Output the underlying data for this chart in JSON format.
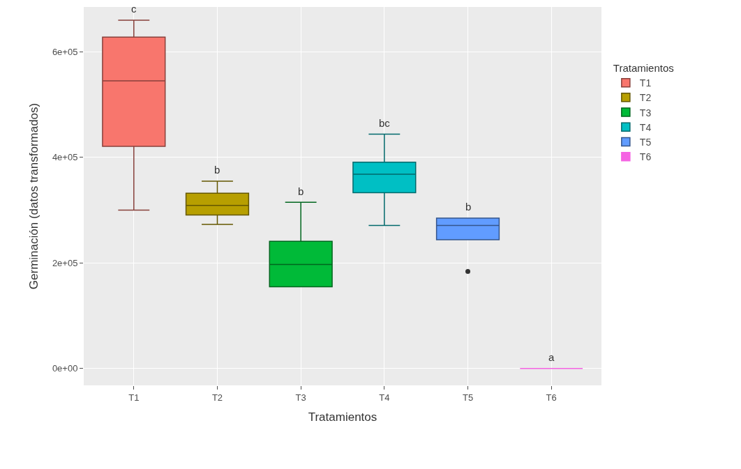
{
  "chart_data": {
    "type": "box",
    "xlabel": "Tratamientos",
    "ylabel": "Germinación (datos transformados)",
    "legend_title": "Tratamientos",
    "categories": [
      "T1",
      "T2",
      "T3",
      "T4",
      "T5",
      "T6"
    ],
    "series": [
      {
        "name": "T1",
        "color": "#F8766D",
        "boxes": [
          {
            "low": 300000,
            "q1": 421000,
            "median": 545000,
            "q3": 628000,
            "high": 660000
          },
          null,
          null,
          null,
          null,
          null
        ]
      },
      {
        "name": "T2",
        "color": "#B79F00",
        "boxes": [
          null,
          {
            "low": 273000,
            "q1": 291000,
            "median": 309000,
            "q3": 332000,
            "high": 355000
          },
          null,
          null,
          null,
          null
        ]
      },
      {
        "name": "T3",
        "color": "#00BA38",
        "boxes": [
          null,
          null,
          {
            "low": 155000,
            "q1": 155000,
            "median": 197000,
            "q3": 241000,
            "high": 315000
          },
          null,
          null,
          null
        ]
      },
      {
        "name": "T4",
        "color": "#00BFC4",
        "boxes": [
          null,
          null,
          null,
          {
            "low": 271000,
            "q1": 333000,
            "median": 368000,
            "q3": 391000,
            "high": 444000
          },
          null,
          null
        ]
      },
      {
        "name": "T5",
        "color": "#619CFF",
        "boxes": [
          null,
          null,
          null,
          null,
          {
            "low": 244000,
            "q1": 244000,
            "median": 271000,
            "q3": 285000,
            "high": 285000,
            "outliers": [
              184000
            ]
          },
          null
        ]
      },
      {
        "name": "T6",
        "color": "#F564E3",
        "boxes": [
          null,
          null,
          null,
          null,
          null,
          {
            "low": 0,
            "q1": 0,
            "median": 0,
            "q3": 0,
            "high": 0
          }
        ]
      }
    ],
    "ylim": [
      -32000,
      685000
    ],
    "yticks": [
      {
        "value": 0,
        "label": "0e+00"
      },
      {
        "value": 200000,
        "label": "2e+05"
      },
      {
        "value": 400000,
        "label": "4e+05"
      },
      {
        "value": 600000,
        "label": "6e+05"
      }
    ],
    "annotations": [
      "c",
      "b",
      "b",
      "bc",
      "b",
      "a"
    ],
    "grid": true,
    "legend": "right"
  }
}
